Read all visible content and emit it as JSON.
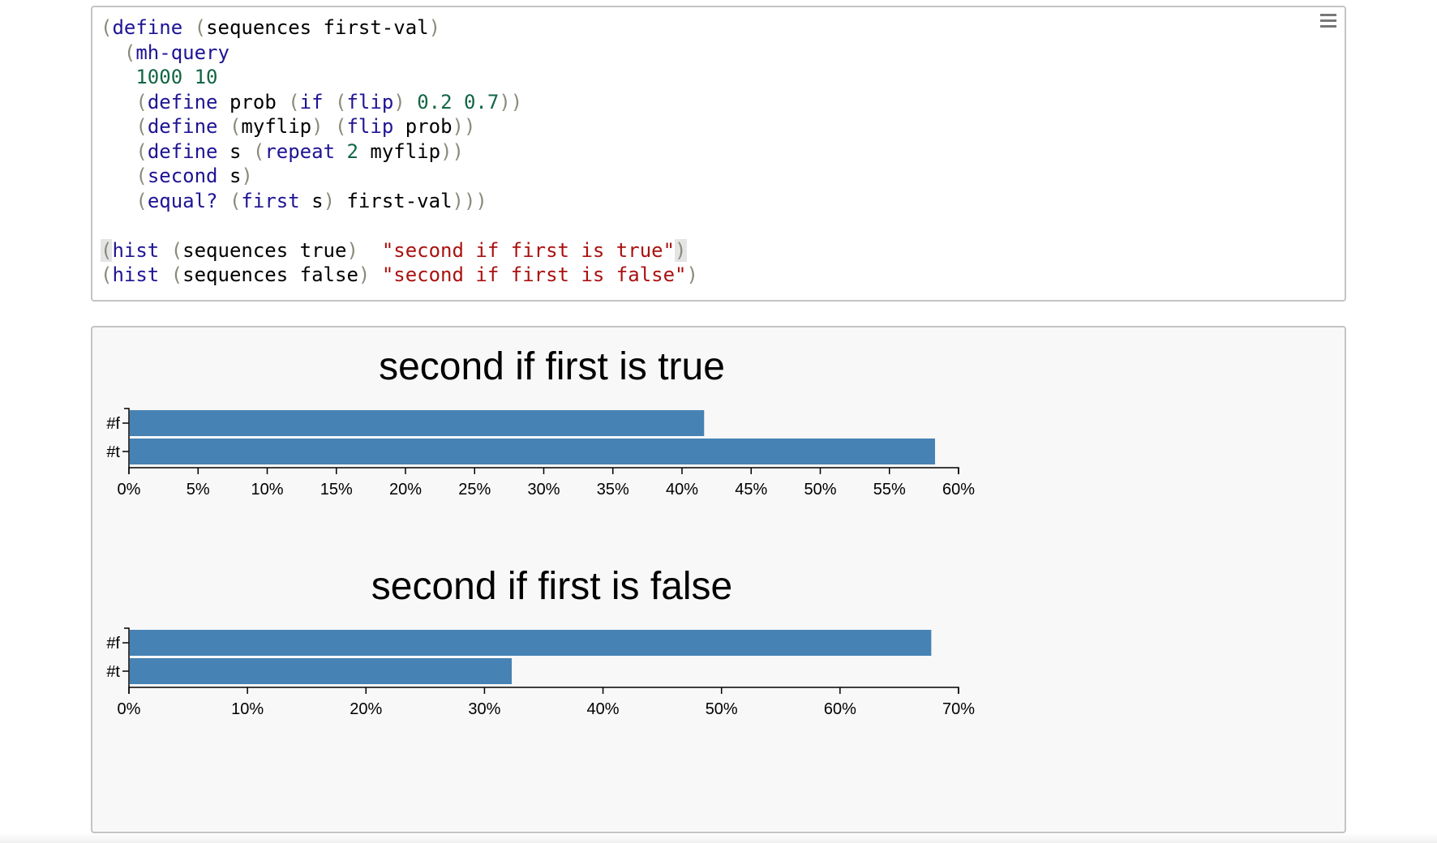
{
  "editor": {
    "menu_icon": "hamburger-menu-icon",
    "lines": [
      [
        {
          "t": "(",
          "c": "p"
        },
        {
          "t": "define",
          "c": "k"
        },
        {
          "t": " ",
          "c": ""
        },
        {
          "t": "(",
          "c": "p"
        },
        {
          "t": "sequences first-val",
          "c": ""
        },
        {
          "t": ")",
          "c": "p"
        }
      ],
      [
        {
          "t": "  ",
          "c": ""
        },
        {
          "t": "(",
          "c": "p"
        },
        {
          "t": "mh-query",
          "c": "k"
        }
      ],
      [
        {
          "t": "   ",
          "c": ""
        },
        {
          "t": "1000 10",
          "c": "n"
        }
      ],
      [
        {
          "t": "   ",
          "c": ""
        },
        {
          "t": "(",
          "c": "p"
        },
        {
          "t": "define",
          "c": "k"
        },
        {
          "t": " prob ",
          "c": ""
        },
        {
          "t": "(",
          "c": "p"
        },
        {
          "t": "if",
          "c": "k"
        },
        {
          "t": " ",
          "c": ""
        },
        {
          "t": "(",
          "c": "p"
        },
        {
          "t": "flip",
          "c": "k"
        },
        {
          "t": ")",
          "c": "p"
        },
        {
          "t": " ",
          "c": ""
        },
        {
          "t": "0.2 0.7",
          "c": "n"
        },
        {
          "t": "))",
          "c": "p"
        }
      ],
      [
        {
          "t": "   ",
          "c": ""
        },
        {
          "t": "(",
          "c": "p"
        },
        {
          "t": "define",
          "c": "k"
        },
        {
          "t": " ",
          "c": ""
        },
        {
          "t": "(",
          "c": "p"
        },
        {
          "t": "myflip",
          "c": ""
        },
        {
          "t": ")",
          "c": "p"
        },
        {
          "t": " ",
          "c": ""
        },
        {
          "t": "(",
          "c": "p"
        },
        {
          "t": "flip",
          "c": "k"
        },
        {
          "t": " prob",
          "c": ""
        },
        {
          "t": "))",
          "c": "p"
        }
      ],
      [
        {
          "t": "   ",
          "c": ""
        },
        {
          "t": "(",
          "c": "p"
        },
        {
          "t": "define",
          "c": "k"
        },
        {
          "t": " s ",
          "c": ""
        },
        {
          "t": "(",
          "c": "p"
        },
        {
          "t": "repeat",
          "c": "k"
        },
        {
          "t": " ",
          "c": ""
        },
        {
          "t": "2",
          "c": "n"
        },
        {
          "t": " myflip",
          "c": ""
        },
        {
          "t": "))",
          "c": "p"
        }
      ],
      [
        {
          "t": "   ",
          "c": ""
        },
        {
          "t": "(",
          "c": "p"
        },
        {
          "t": "second",
          "c": "k"
        },
        {
          "t": " s",
          "c": ""
        },
        {
          "t": ")",
          "c": "p"
        }
      ],
      [
        {
          "t": "   ",
          "c": ""
        },
        {
          "t": "(",
          "c": "p"
        },
        {
          "t": "equal?",
          "c": "k"
        },
        {
          "t": " ",
          "c": ""
        },
        {
          "t": "(",
          "c": "p"
        },
        {
          "t": "first",
          "c": "k"
        },
        {
          "t": " s",
          "c": ""
        },
        {
          "t": ")",
          "c": "p"
        },
        {
          "t": " first-val",
          "c": ""
        },
        {
          "t": ")))",
          "c": "p"
        }
      ],
      [],
      [
        {
          "t": "(",
          "c": "p hl"
        },
        {
          "t": "hist",
          "c": "k"
        },
        {
          "t": " ",
          "c": ""
        },
        {
          "t": "(",
          "c": "p"
        },
        {
          "t": "sequences true",
          "c": ""
        },
        {
          "t": ")",
          "c": "p"
        },
        {
          "t": "  ",
          "c": ""
        },
        {
          "t": "\"second if first is true\"",
          "c": "s"
        },
        {
          "t": ")",
          "c": "p hl"
        }
      ],
      [
        {
          "t": "(",
          "c": "p"
        },
        {
          "t": "hist",
          "c": "k"
        },
        {
          "t": " ",
          "c": ""
        },
        {
          "t": "(",
          "c": "p"
        },
        {
          "t": "sequences false",
          "c": ""
        },
        {
          "t": ")",
          "c": "p"
        },
        {
          "t": " ",
          "c": ""
        },
        {
          "t": "\"second if first is false\"",
          "c": "s"
        },
        {
          "t": ")",
          "c": "p"
        }
      ]
    ]
  },
  "chart_data": [
    {
      "type": "bar",
      "orientation": "horizontal",
      "title": "second if first is true",
      "categories": [
        "#f",
        "#t"
      ],
      "values": [
        0.416,
        0.583
      ],
      "xlim": [
        0,
        0.6
      ],
      "xticks": [
        0,
        0.05,
        0.1,
        0.15,
        0.2,
        0.25,
        0.3,
        0.35,
        0.4,
        0.45,
        0.5,
        0.55,
        0.6
      ],
      "xtick_labels": [
        "0%",
        "5%",
        "10%",
        "15%",
        "20%",
        "25%",
        "30%",
        "35%",
        "40%",
        "45%",
        "50%",
        "55%",
        "60%"
      ],
      "color": "#4682b4"
    },
    {
      "type": "bar",
      "orientation": "horizontal",
      "title": "second if first is false",
      "categories": [
        "#f",
        "#t"
      ],
      "values": [
        0.677,
        0.323
      ],
      "xlim": [
        0,
        0.7
      ],
      "xticks": [
        0,
        0.1,
        0.2,
        0.3,
        0.4,
        0.5,
        0.6,
        0.7
      ],
      "xtick_labels": [
        "0%",
        "10%",
        "20%",
        "30%",
        "40%",
        "50%",
        "60%",
        "70%"
      ],
      "color": "#4682b4"
    }
  ]
}
